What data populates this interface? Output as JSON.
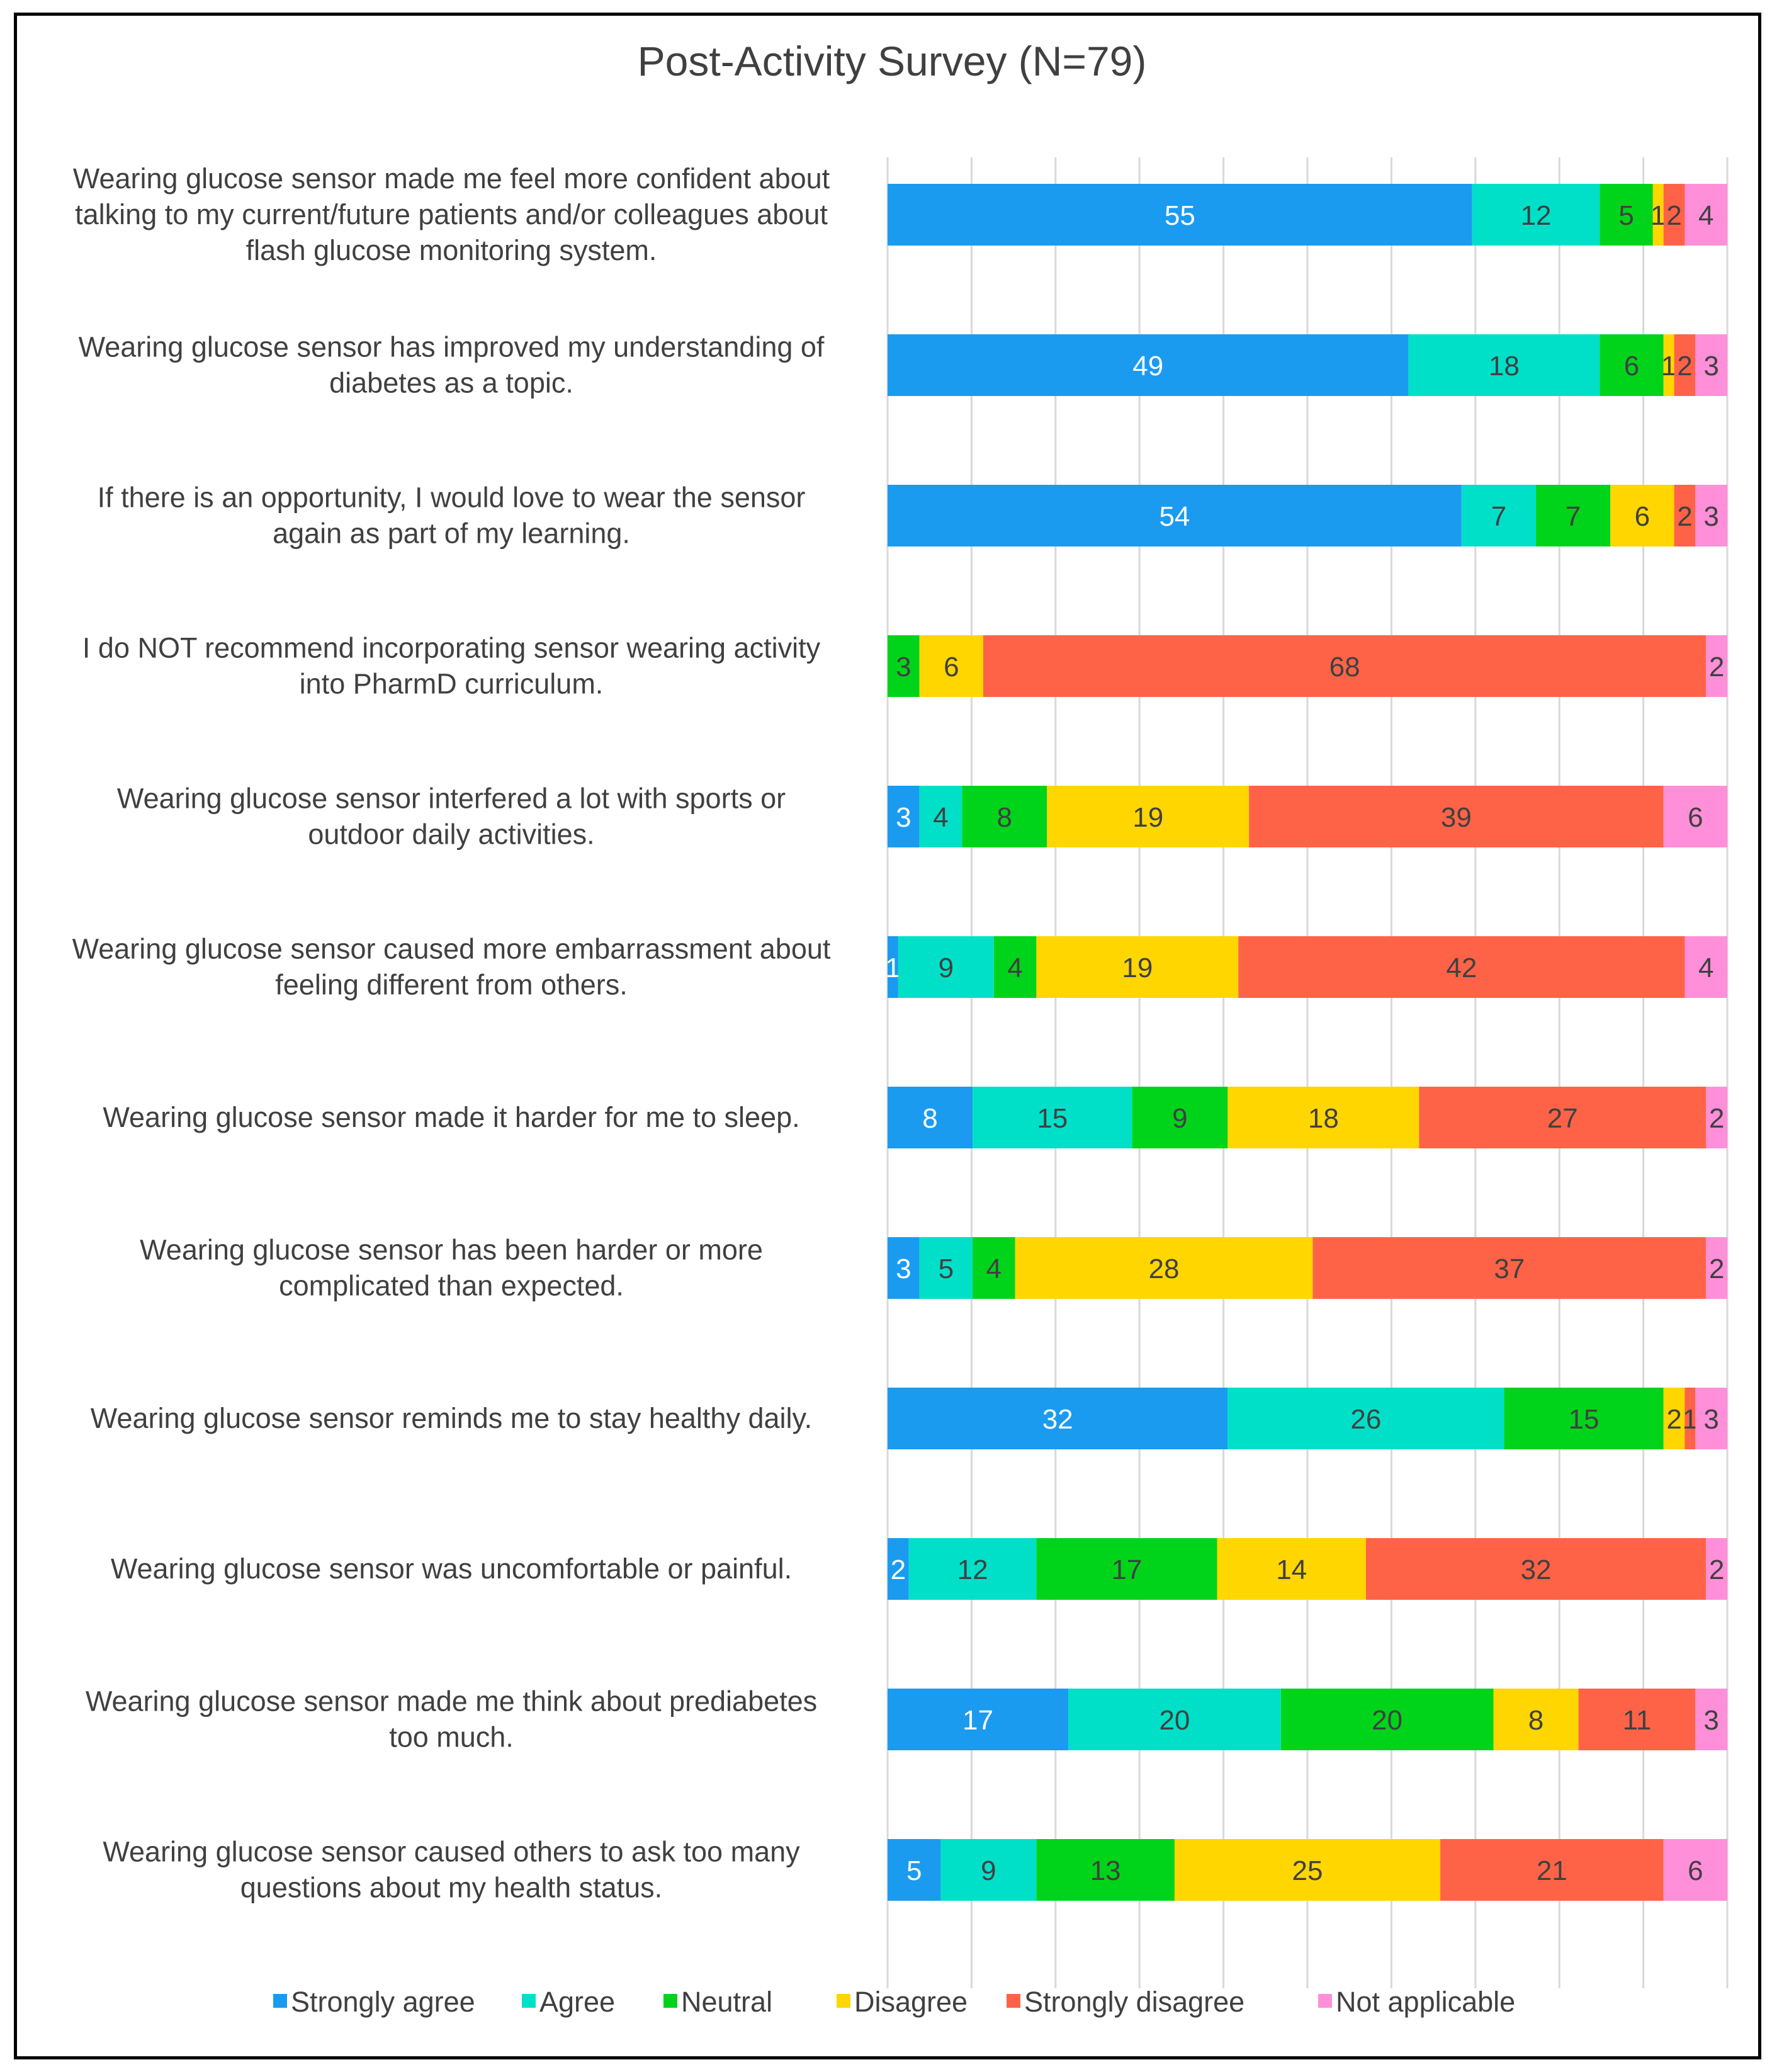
{
  "chart_data": {
    "type": "bar",
    "orientation": "horizontal",
    "stacked": true,
    "title": "Post-Activity Survey (N=79)",
    "xlim": [
      0,
      79
    ],
    "grid": true,
    "legend_position": "bottom",
    "categories": [
      "Wearing glucose sensor made me feel more confident about talking to my current/future patients and/or colleagues about flash glucose monitoring system.",
      "Wearing glucose sensor has improved my understanding of diabetes as a topic.",
      "If there is an opportunity, I would love to wear the sensor again as part of my learning.",
      "I do NOT recommend incorporating sensor wearing activity into PharmD curriculum.",
      "Wearing glucose sensor interfered a lot with sports or outdoor daily activities.",
      "Wearing glucose sensor caused more embarrassment about feeling different from others.",
      "Wearing glucose sensor made it harder for me to sleep.",
      "Wearing glucose sensor has been harder or more complicated than expected.",
      "Wearing glucose sensor reminds me to stay healthy daily.",
      "Wearing glucose sensor was uncomfortable or painful.",
      "Wearing glucose sensor made me think about prediabetes too much.",
      "Wearing glucose sensor caused others to ask too many questions about my health status."
    ],
    "category_lines": [
      [
        "Wearing glucose sensor made me feel more confident about",
        "talking to my current/future patients and/or colleagues about",
        "flash glucose monitoring system."
      ],
      [
        "Wearing glucose sensor has improved my understanding of",
        "diabetes as a topic."
      ],
      [
        "If there is an opportunity, I would love to wear the sensor",
        "again as part of my learning."
      ],
      [
        "I do NOT recommend incorporating sensor wearing activity",
        "into PharmD curriculum."
      ],
      [
        "Wearing glucose sensor interfered a lot with sports or",
        "outdoor daily activities."
      ],
      [
        "Wearing glucose sensor caused more embarrassment about",
        "feeling different from others."
      ],
      [
        "Wearing glucose sensor made it harder for me to sleep."
      ],
      [
        "Wearing glucose sensor has been harder or more",
        "complicated than expected."
      ],
      [
        "Wearing glucose sensor reminds me to stay healthy daily."
      ],
      [
        "Wearing glucose sensor was uncomfortable or painful."
      ],
      [
        "Wearing glucose sensor made me think about prediabetes",
        "too much."
      ],
      [
        "Wearing glucose sensor caused others to ask too many",
        "questions about my health status."
      ]
    ],
    "series": [
      {
        "name": "Strongly agree",
        "color": "#1A9BF0",
        "label_color": "#ffffff",
        "values": [
          55,
          49,
          54,
          0,
          3,
          1,
          8,
          3,
          32,
          2,
          17,
          5
        ]
      },
      {
        "name": "Agree",
        "color": "#00E0C9",
        "label_color": "#404040",
        "values": [
          12,
          18,
          7,
          0,
          4,
          9,
          15,
          5,
          26,
          12,
          20,
          9
        ]
      },
      {
        "name": "Neutral",
        "color": "#00D41A",
        "label_color": "#404040",
        "values": [
          5,
          6,
          7,
          3,
          8,
          4,
          9,
          4,
          15,
          17,
          20,
          13
        ]
      },
      {
        "name": "Disagree",
        "color": "#FFD600",
        "label_color": "#404040",
        "values": [
          1,
          1,
          6,
          6,
          19,
          19,
          18,
          28,
          2,
          14,
          8,
          25
        ]
      },
      {
        "name": "Strongly disagree",
        "color": "#FF6347",
        "label_color": "#404040",
        "values": [
          2,
          2,
          2,
          68,
          39,
          42,
          27,
          37,
          1,
          32,
          11,
          21
        ]
      },
      {
        "name": "Not applicable",
        "color": "#FF8FD8",
        "label_color": "#404040",
        "values": [
          4,
          3,
          3,
          2,
          6,
          4,
          2,
          2,
          3,
          2,
          3,
          6
        ]
      }
    ]
  }
}
